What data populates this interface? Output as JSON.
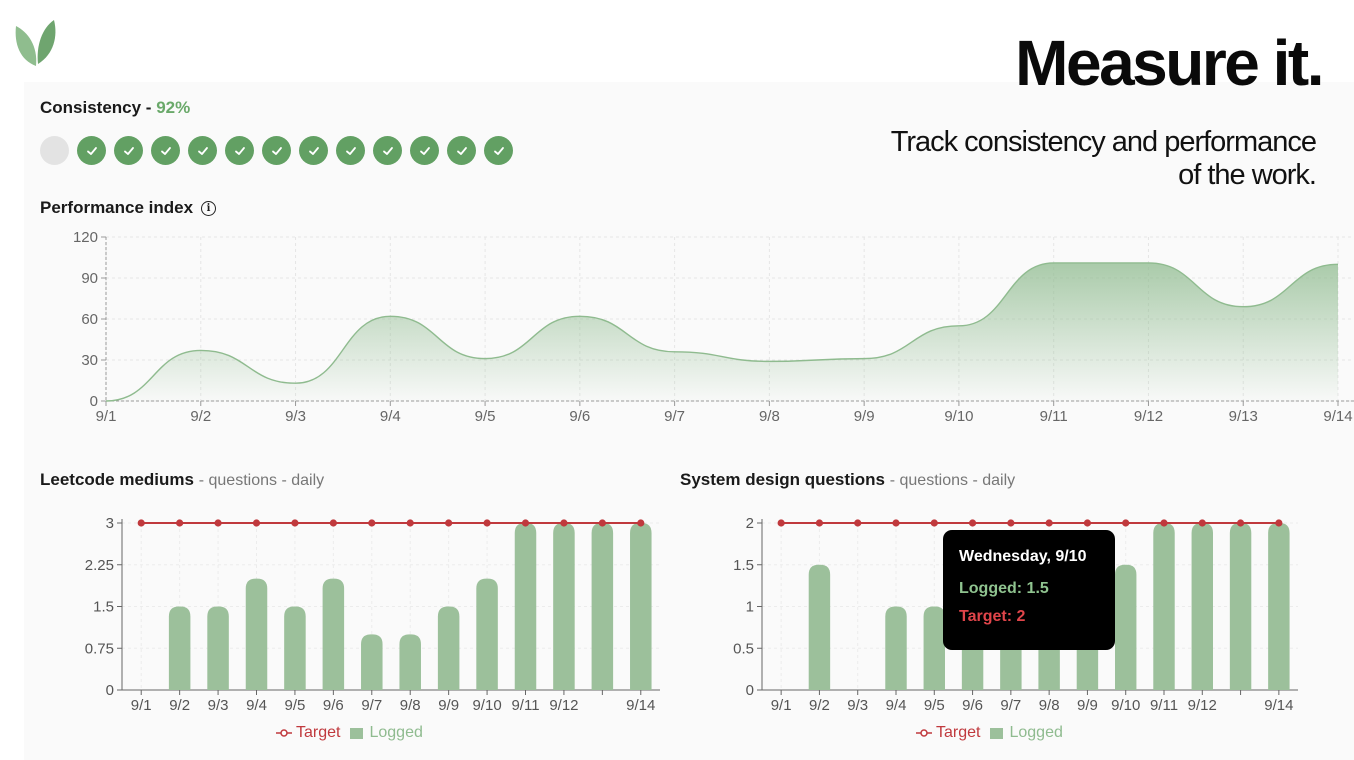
{
  "header": {
    "headline": "Measure it.",
    "tagline_line1": "Track consistency and performance",
    "tagline_line2": "of the work."
  },
  "consistency": {
    "label": "Consistency -",
    "percent": "92%",
    "days": [
      false,
      true,
      true,
      true,
      true,
      true,
      true,
      true,
      true,
      true,
      true,
      true,
      true
    ]
  },
  "performance": {
    "title": "Performance index",
    "info_icon": "info-icon"
  },
  "leetcode": {
    "title": "Leetcode mediums",
    "subtitle": "- questions - daily"
  },
  "system_design": {
    "title": "System design questions",
    "subtitle": "- questions - daily"
  },
  "tooltip": {
    "day": "Wednesday, 9/10",
    "logged": "Logged: 1.5",
    "target": "Target: 2"
  },
  "legend": {
    "target": "Target",
    "logged": "Logged"
  },
  "colors": {
    "accent": "#62a063",
    "bar": "#9cc09b",
    "target": "#c0393d",
    "area_line": "#8fbb8f"
  },
  "chart_data": [
    {
      "type": "area",
      "title": "Performance index",
      "x": [
        "9/1",
        "9/2",
        "9/3",
        "9/4",
        "9/5",
        "9/6",
        "9/7",
        "9/8",
        "9/9",
        "9/10",
        "9/11",
        "9/12",
        "9/13",
        "9/14"
      ],
      "values": [
        0,
        37,
        13,
        62,
        31,
        62,
        36,
        29,
        31,
        55,
        101,
        101,
        69,
        100
      ],
      "yticks": [
        0,
        30,
        60,
        90,
        120
      ],
      "ylim": [
        0,
        120
      ],
      "grid": true
    },
    {
      "type": "bar",
      "title": "Leetcode mediums",
      "categories": [
        "9/1",
        "9/2",
        "9/3",
        "9/4",
        "9/5",
        "9/6",
        "9/7",
        "9/8",
        "9/9",
        "9/10",
        "9/11",
        "9/12",
        "9/13",
        "9/14"
      ],
      "tick_labels": [
        "9/1",
        "9/2",
        "9/3",
        "9/4",
        "9/5",
        "9/6",
        "9/7",
        "9/8",
        "9/9",
        "9/10",
        "9/11",
        "9/12",
        "",
        "9/14"
      ],
      "yticks": [
        "0",
        "0.75",
        "1.5",
        "2.25",
        "3"
      ],
      "ylim": [
        0,
        3
      ],
      "series": [
        {
          "name": "Logged",
          "values": [
            0,
            1.5,
            1.5,
            2,
            1.5,
            2,
            1,
            1,
            1.5,
            2,
            3,
            3,
            3,
            3
          ]
        },
        {
          "name": "Target",
          "values": [
            3,
            3,
            3,
            3,
            3,
            3,
            3,
            3,
            3,
            3,
            3,
            3,
            3,
            3
          ]
        }
      ],
      "legend": "bottom"
    },
    {
      "type": "bar",
      "title": "System design questions",
      "categories": [
        "9/1",
        "9/2",
        "9/3",
        "9/4",
        "9/5",
        "9/6",
        "9/7",
        "9/8",
        "9/9",
        "9/10",
        "9/11",
        "9/12",
        "9/13",
        "9/14"
      ],
      "tick_labels": [
        "9/1",
        "9/2",
        "9/3",
        "9/4",
        "9/5",
        "9/6",
        "9/7",
        "9/8",
        "9/9",
        "9/10",
        "9/11",
        "9/12",
        "",
        "9/14"
      ],
      "yticks": [
        "0",
        "0.5",
        "1",
        "1.5",
        "2"
      ],
      "ylim": [
        0,
        2
      ],
      "series": [
        {
          "name": "Logged",
          "values": [
            0,
            1.5,
            0,
            1,
            1,
            1,
            1,
            1,
            1,
            1.5,
            2,
            2,
            2,
            2
          ]
        },
        {
          "name": "Target",
          "values": [
            2,
            2,
            2,
            2,
            2,
            2,
            2,
            2,
            2,
            2,
            2,
            2,
            2,
            2
          ]
        }
      ],
      "legend": "bottom"
    }
  ]
}
